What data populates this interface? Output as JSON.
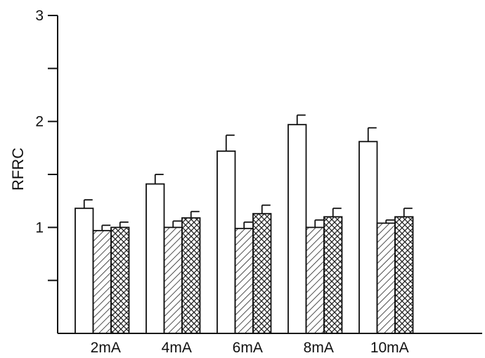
{
  "chart_data": {
    "type": "bar",
    "ylabel": "RFRC",
    "xlabel": "",
    "ylim": [
      0,
      3
    ],
    "y_ticks": [
      {
        "value": 0.5,
        "label": ""
      },
      {
        "value": 1,
        "label": "1"
      },
      {
        "value": 1.5,
        "label": ""
      },
      {
        "value": 2,
        "label": "2"
      },
      {
        "value": 2.5,
        "label": ""
      },
      {
        "value": 3,
        "label": "3"
      }
    ],
    "grid": false,
    "legend": "none",
    "categories": [
      "2mA",
      "4mA",
      "6mA",
      "8mA",
      "10mA"
    ],
    "series": [
      {
        "pattern": "open",
        "values": [
          1.18,
          1.41,
          1.72,
          1.97,
          1.81
        ],
        "errors": [
          0.08,
          0.09,
          0.15,
          0.09,
          0.13
        ]
      },
      {
        "pattern": "diagonal-hatch",
        "values": [
          0.97,
          1.0,
          0.99,
          1.0,
          1.04
        ],
        "errors": [
          0.05,
          0.06,
          0.06,
          0.07,
          0.03
        ]
      },
      {
        "pattern": "cross-hatch",
        "values": [
          1.0,
          1.09,
          1.13,
          1.1,
          1.1
        ],
        "errors": [
          0.05,
          0.06,
          0.08,
          0.08,
          0.08
        ]
      }
    ]
  }
}
